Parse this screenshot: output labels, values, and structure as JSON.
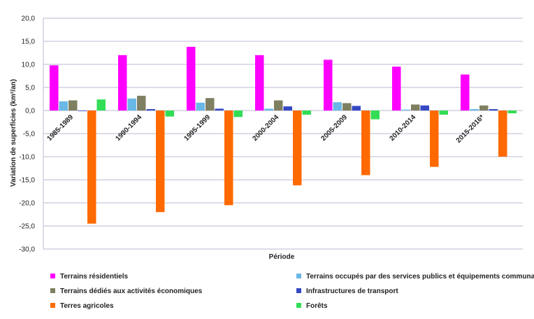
{
  "chart_data": {
    "type": "bar",
    "xlabel": "Période",
    "ylabel": "Variation de superficies (km²/an)",
    "ylim": [
      -30,
      20
    ],
    "yticks": [
      20,
      15,
      10,
      5,
      0,
      -5,
      -10,
      -15,
      -20,
      -25,
      -30
    ],
    "ytick_labels": [
      "20,0",
      "15,0",
      "10,0",
      "5,0",
      "0,0",
      "-5,0",
      "-10,0",
      "-15,0",
      "-20,0",
      "-25,0",
      "-30,0"
    ],
    "grid": true,
    "legend_position": "bottom",
    "categories": [
      "1985-1989",
      "1990-1994",
      "1995-1999",
      "2000-2004",
      "2005-2009",
      "2010-2014",
      "2015-2016*"
    ],
    "series": [
      {
        "name": "Terrains résidentiels",
        "color": "#ff00ff",
        "values": [
          9.8,
          12.0,
          13.8,
          12.0,
          11.0,
          9.5,
          7.8
        ]
      },
      {
        "name": "Terrains occupés par des services publics et équipements communautaires",
        "color": "#6ab8e6",
        "values": [
          2.0,
          2.6,
          1.7,
          0.4,
          1.8,
          0.2,
          0.3
        ]
      },
      {
        "name": "Terrains dédiés aux activités économiques",
        "color": "#7f7f62",
        "values": [
          2.2,
          3.2,
          2.7,
          2.2,
          1.6,
          1.3,
          1.1
        ]
      },
      {
        "name": "Infrastructures de transport",
        "color": "#3549c4",
        "values": [
          -0.1,
          0.3,
          0.4,
          0.9,
          1.0,
          1.1,
          0.3
        ]
      },
      {
        "name": "Terres agricoles",
        "color": "#ff6a00",
        "values": [
          -24.5,
          -22.0,
          -20.5,
          -16.2,
          -14.0,
          -12.2,
          -10.0
        ]
      },
      {
        "name": "Forêts",
        "color": "#33dd55",
        "values": [
          2.4,
          -1.3,
          -1.4,
          -0.9,
          -1.9,
          -0.9,
          -0.6
        ]
      }
    ]
  }
}
